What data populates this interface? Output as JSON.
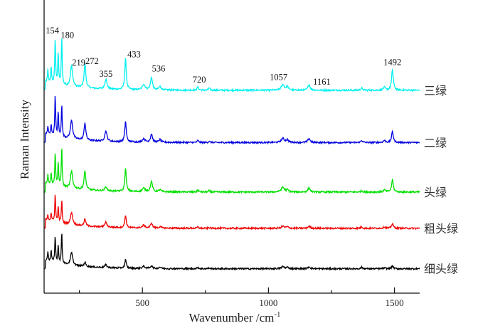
{
  "chart_data": {
    "type": "line",
    "title": "",
    "xlabel": "Wavenumber /cm",
    "xlabel_superscript": "-1",
    "ylabel": "Raman Intensity",
    "xlim": [
      110,
      1600
    ],
    "ylim": [
      0,
      400
    ],
    "xticks_major": [
      500,
      1000,
      1500
    ],
    "xticks_minor": [
      250,
      750,
      1250
    ],
    "xtick_labels": [
      "500",
      "1000",
      "1500"
    ],
    "yticks": [],
    "grid": false,
    "legend": "inline-right",
    "peak_annotations": [
      {
        "label": "154",
        "x": 154
      },
      {
        "label": "180",
        "x": 180
      },
      {
        "label": "219",
        "x": 219
      },
      {
        "label": "272",
        "x": 272
      },
      {
        "label": "355",
        "x": 355
      },
      {
        "label": "433",
        "x": 433
      },
      {
        "label": "536",
        "x": 536
      },
      {
        "label": "720",
        "x": 720
      },
      {
        "label": "1057",
        "x": 1057
      },
      {
        "label": "1161",
        "x": 1161
      },
      {
        "label": "1492",
        "x": 1492
      }
    ],
    "peak_positions": [
      125,
      138,
      154,
      166,
      180,
      219,
      272,
      355,
      433,
      505,
      536,
      570,
      720,
      765,
      1057,
      1075,
      1161,
      1370,
      1460,
      1492
    ],
    "peak_widths": [
      4,
      4,
      4,
      4,
      4,
      10,
      8,
      10,
      7,
      12,
      9,
      10,
      6,
      6,
      14,
      10,
      10,
      8,
      10,
      8
    ],
    "series": [
      {
        "name": "三绿",
        "color": "#00f0f0",
        "baseline": 291,
        "amplitudes": [
          18,
          22,
          65,
          45,
          70,
          30,
          35,
          14,
          45,
          8,
          18,
          5,
          5,
          3,
          8,
          5,
          8,
          3,
          4,
          30
        ]
      },
      {
        "name": "二绿",
        "color": "#0000e0",
        "baseline": 216,
        "amplitudes": [
          12,
          16,
          59,
          35,
          48,
          27,
          25,
          15,
          30,
          5,
          12,
          4,
          3,
          2,
          6,
          4,
          6,
          3,
          3,
          16
        ]
      },
      {
        "name": "头绿",
        "color": "#00e000",
        "baseline": 145,
        "amplitudes": [
          14,
          18,
          48,
          34,
          58,
          25,
          27,
          6,
          33,
          5,
          15,
          3,
          3,
          2,
          7,
          3,
          6,
          2,
          3,
          18
        ]
      },
      {
        "name": "粗头绿",
        "color": "#f00000",
        "baseline": 93,
        "amplitudes": [
          8,
          12,
          40,
          22,
          33,
          18,
          10,
          7,
          18,
          4,
          7,
          2,
          2,
          1,
          3,
          2,
          3,
          2,
          2,
          7
        ]
      },
      {
        "name": "细头绿",
        "color": "#000000",
        "baseline": 35,
        "amplitudes": [
          12,
          16,
          38,
          25,
          45,
          18,
          6,
          4,
          12,
          3,
          4,
          2,
          2,
          1,
          3,
          2,
          3,
          2,
          1,
          4
        ]
      }
    ]
  }
}
